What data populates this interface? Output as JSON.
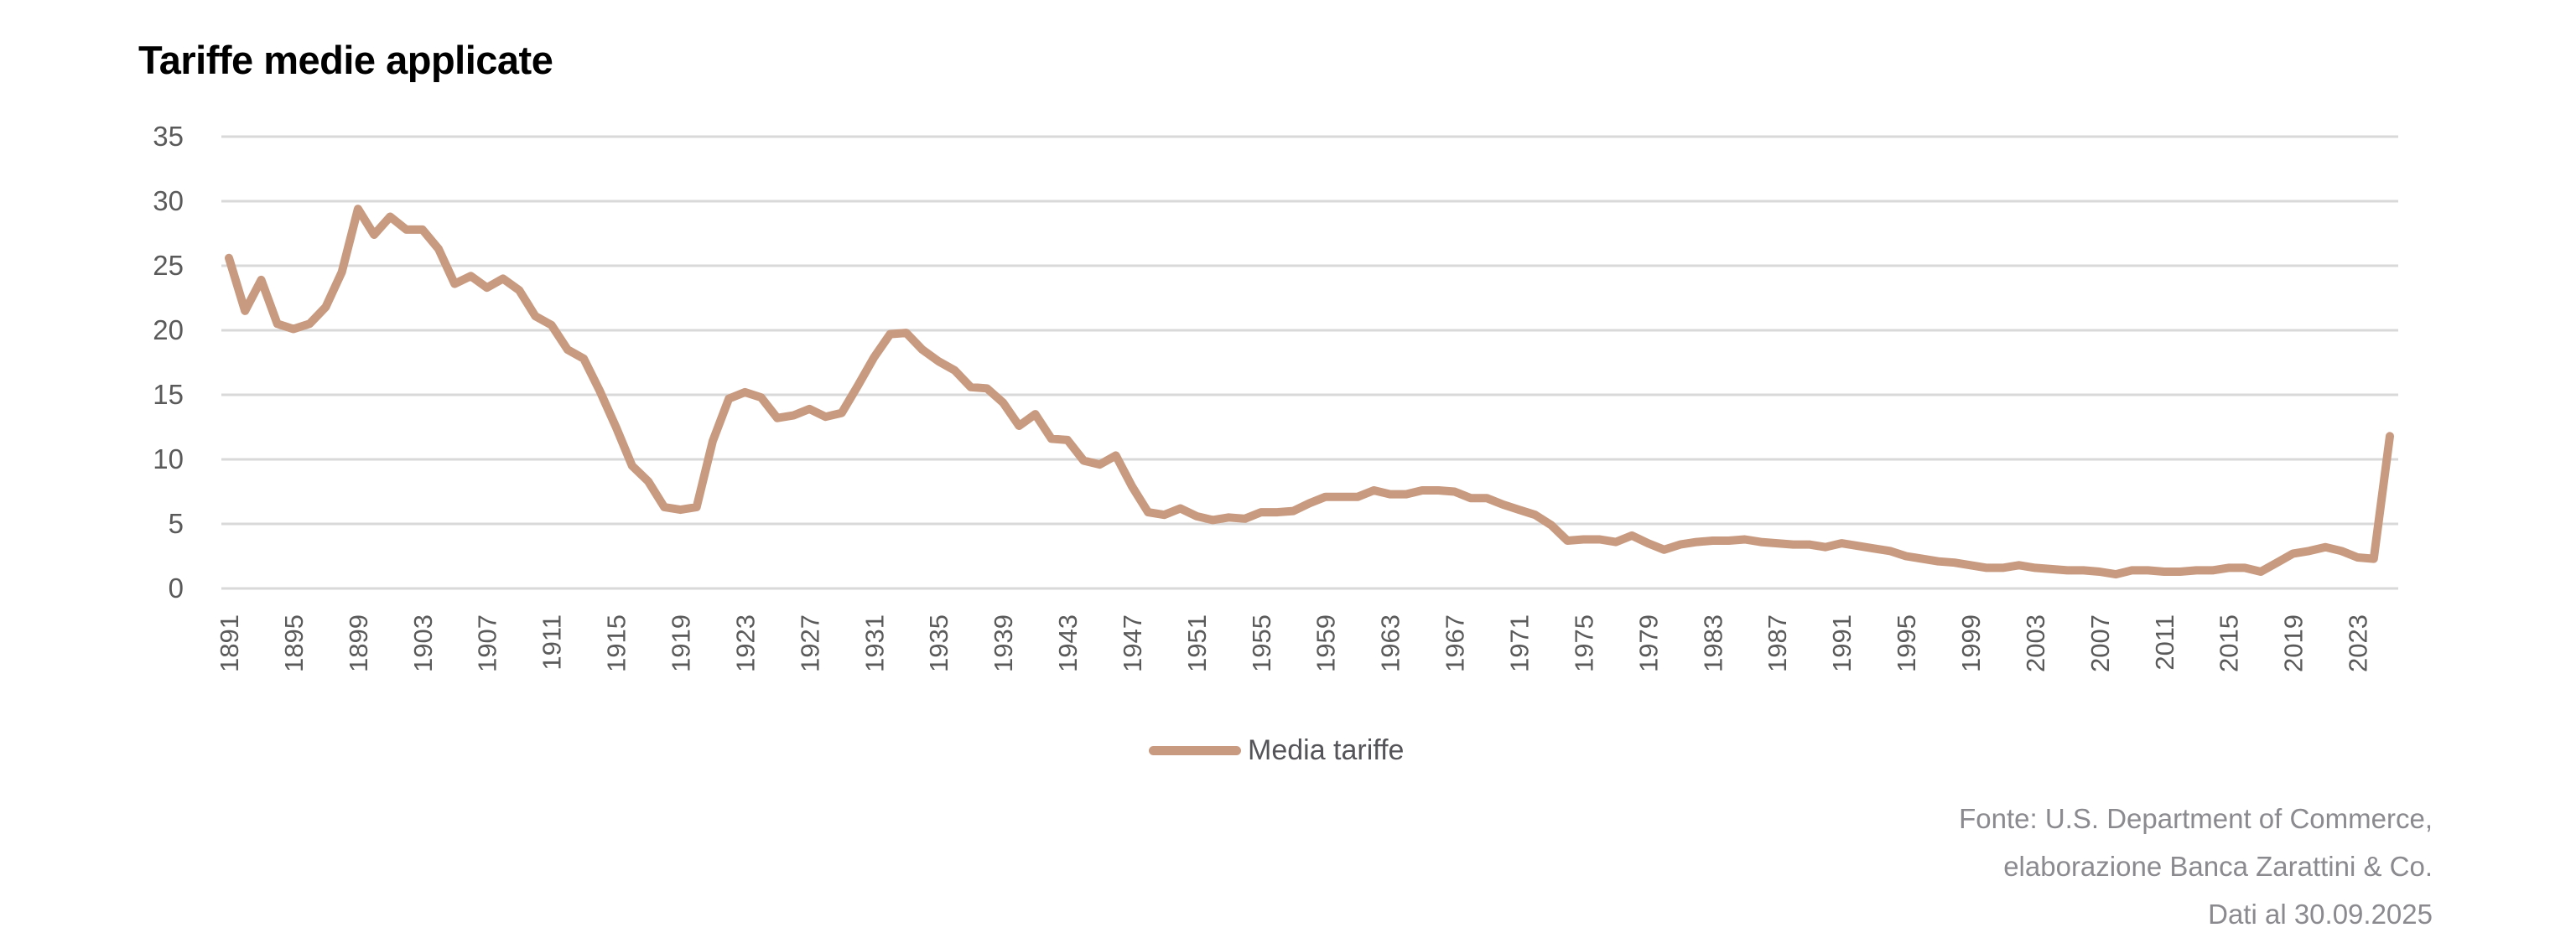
{
  "chart_data": {
    "type": "line",
    "title": "Tariffe medie applicate",
    "xlabel": "",
    "ylabel": "",
    "ylim": [
      0,
      35
    ],
    "yticks": [
      0,
      5,
      10,
      15,
      20,
      25,
      30,
      35
    ],
    "xtick_labels": [
      "1891",
      "1895",
      "1899",
      "1903",
      "1907",
      "1911",
      "1915",
      "1919",
      "1923",
      "1927",
      "1931",
      "1935",
      "1939",
      "1943",
      "1947",
      "1951",
      "1955",
      "1959",
      "1963",
      "1967",
      "1971",
      "1975",
      "1979",
      "1983",
      "1987",
      "1991",
      "1995",
      "1999",
      "2003",
      "2007",
      "2011",
      "2015",
      "2019",
      "2023"
    ],
    "grid": "horizontal",
    "legend_position": "bottom-center",
    "x_start": 1891,
    "x_end": 2025,
    "series": [
      {
        "name": "Media tariffe",
        "color": "#C89A80",
        "values": [
          25.6,
          21.5,
          23.9,
          20.5,
          20.1,
          20.5,
          21.8,
          24.5,
          29.4,
          27.4,
          28.8,
          27.8,
          27.8,
          26.3,
          23.6,
          24.2,
          23.3,
          24.0,
          23.1,
          21.1,
          20.4,
          18.5,
          17.8,
          15.3,
          12.5,
          9.5,
          8.3,
          6.3,
          6.1,
          6.3,
          11.4,
          14.7,
          15.2,
          14.8,
          13.2,
          13.4,
          13.9,
          13.3,
          13.6,
          15.7,
          17.9,
          19.7,
          19.8,
          18.5,
          17.6,
          16.9,
          15.6,
          15.5,
          14.4,
          12.6,
          13.5,
          11.6,
          11.5,
          9.9,
          9.6,
          10.3,
          7.9,
          5.9,
          5.7,
          6.2,
          5.6,
          5.3,
          5.5,
          5.4,
          5.9,
          5.9,
          6.0,
          6.6,
          7.1,
          7.1,
          7.1,
          7.6,
          7.3,
          7.3,
          7.6,
          7.6,
          7.5,
          7.0,
          7.0,
          6.5,
          6.1,
          5.7,
          4.9,
          3.7,
          3.8,
          3.8,
          3.6,
          4.1,
          3.5,
          3.0,
          3.4,
          3.6,
          3.7,
          3.7,
          3.8,
          3.6,
          3.5,
          3.4,
          3.4,
          3.2,
          3.5,
          3.3,
          3.1,
          2.9,
          2.5,
          2.3,
          2.1,
          2.0,
          1.8,
          1.6,
          1.6,
          1.8,
          1.6,
          1.5,
          1.4,
          1.4,
          1.3,
          1.1,
          1.4,
          1.4,
          1.3,
          1.3,
          1.4,
          1.4,
          1.6,
          1.6,
          1.3,
          2.0,
          2.7,
          2.9,
          3.2,
          2.9,
          2.4,
          2.3,
          11.8
        ]
      }
    ]
  },
  "legend": {
    "label": "Media tariffe"
  },
  "source": {
    "lines": [
      "Fonte: U.S. Department of Commerce,",
      "elaborazione Banca Zarattini & Co.",
      "Dati al 30.09.2025"
    ]
  },
  "colors": {
    "line": "#C89A80",
    "grid": "#D9D9D9",
    "tick_text": "#5a5a5a",
    "source_text": "#8a8a8f"
  }
}
